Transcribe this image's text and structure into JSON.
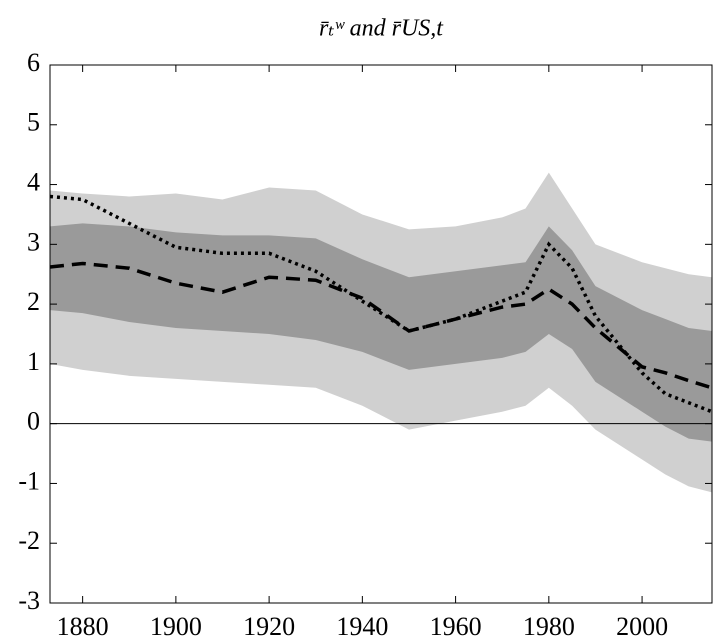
{
  "chart_data": {
    "type": "line",
    "title": "r̄ₜʷ and r̄US,t",
    "x": [
      1873,
      1880,
      1890,
      1900,
      1910,
      1920,
      1930,
      1940,
      1950,
      1960,
      1970,
      1975,
      1980,
      1985,
      1990,
      2000,
      2005,
      2010,
      2015
    ],
    "bands": [
      {
        "color": "#d0d0d0",
        "upper": [
          3.9,
          3.85,
          3.8,
          3.85,
          3.75,
          3.95,
          3.9,
          3.5,
          3.25,
          3.3,
          3.45,
          3.6,
          4.2,
          3.6,
          3.0,
          2.7,
          2.6,
          2.5,
          2.45
        ],
        "lower": [
          1.0,
          0.9,
          0.8,
          0.75,
          0.7,
          0.65,
          0.6,
          0.3,
          -0.1,
          0.05,
          0.2,
          0.3,
          0.6,
          0.3,
          -0.1,
          -0.6,
          -0.85,
          -1.05,
          -1.15
        ]
      },
      {
        "color": "#9a9a9a",
        "upper": [
          3.3,
          3.35,
          3.3,
          3.2,
          3.15,
          3.15,
          3.1,
          2.75,
          2.45,
          2.55,
          2.65,
          2.7,
          3.3,
          2.9,
          2.3,
          1.9,
          1.75,
          1.6,
          1.55
        ],
        "lower": [
          1.9,
          1.85,
          1.7,
          1.6,
          1.55,
          1.5,
          1.4,
          1.2,
          0.9,
          1.0,
          1.1,
          1.2,
          1.5,
          1.25,
          0.7,
          0.2,
          -0.05,
          -0.25,
          -0.3
        ]
      }
    ],
    "series": [
      {
        "color": "#000000",
        "dash": "dashed",
        "values": [
          2.62,
          2.68,
          2.6,
          2.35,
          2.2,
          2.45,
          2.4,
          2.1,
          1.55,
          1.75,
          1.95,
          2.0,
          2.25,
          2.0,
          1.6,
          0.95,
          0.85,
          0.72,
          0.6
        ]
      },
      {
        "color": "#000000",
        "dash": "dotted",
        "values": [
          3.8,
          3.75,
          3.35,
          2.95,
          2.85,
          2.85,
          2.55,
          2.05,
          1.55,
          1.75,
          2.05,
          2.2,
          3.0,
          2.6,
          1.8,
          0.85,
          0.5,
          0.35,
          0.2
        ]
      }
    ],
    "xlim": [
      1873,
      2015
    ],
    "xticks": [
      1880,
      1900,
      1920,
      1940,
      1960,
      1980,
      2000
    ],
    "ylim": [
      -3,
      6
    ],
    "yticks": [
      -3,
      -2,
      -1,
      0,
      1,
      2,
      3,
      4,
      5,
      6
    ],
    "hline": 0,
    "grid": false
  }
}
